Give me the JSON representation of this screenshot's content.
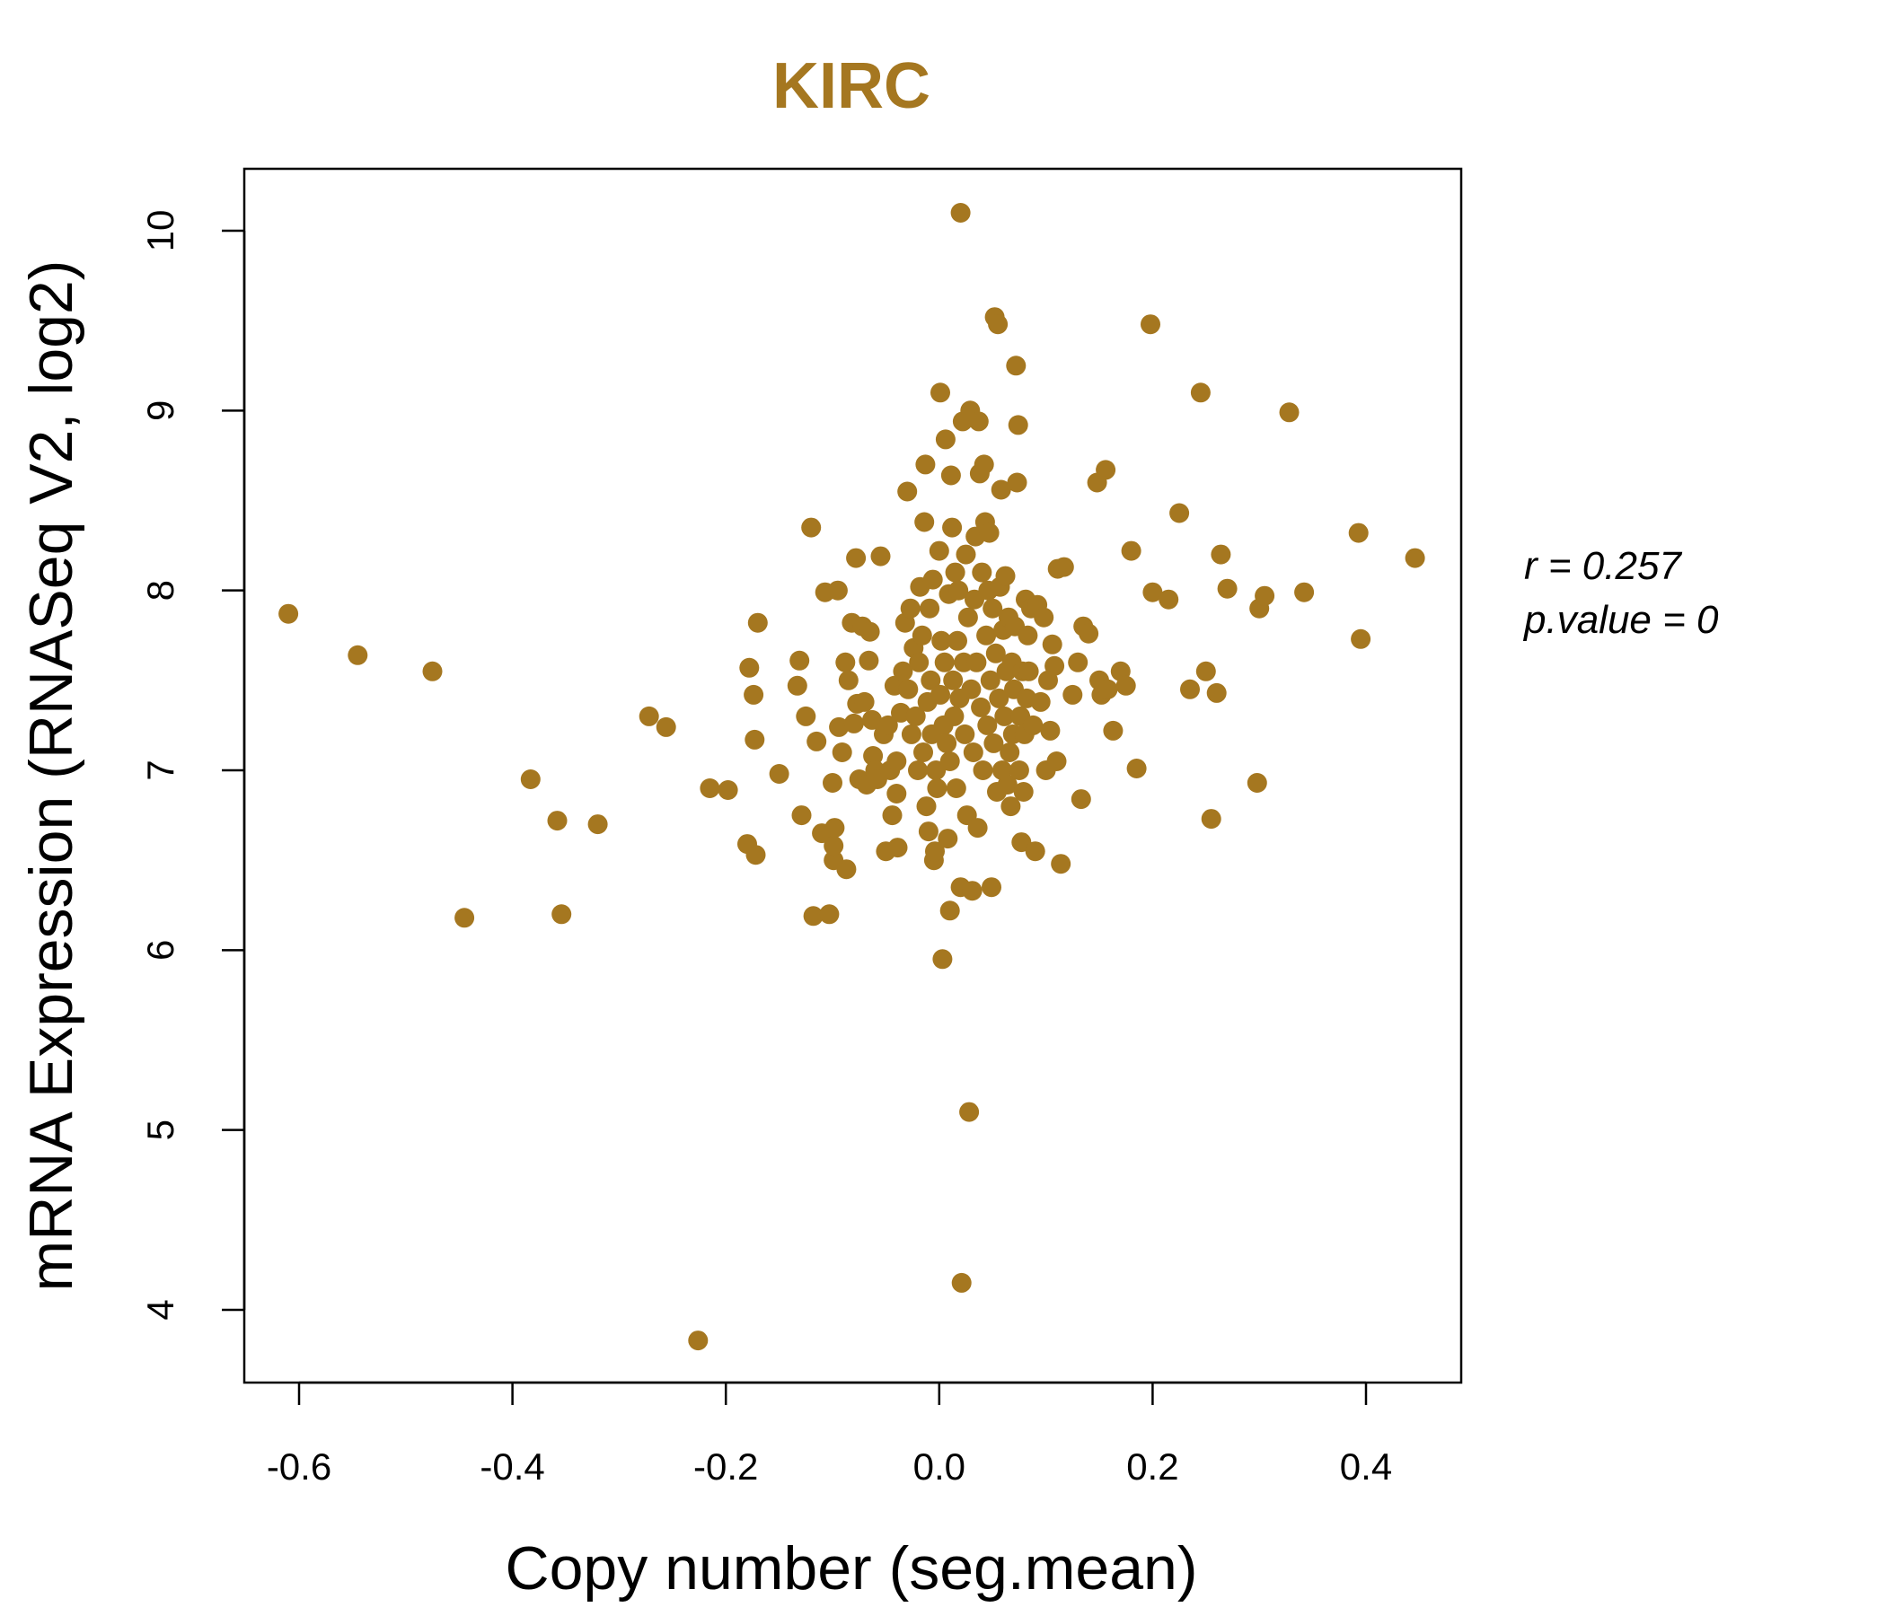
{
  "chart_data": {
    "type": "scatter",
    "title": "KIRC",
    "xlabel": "Copy number (seg.mean)",
    "ylabel": "mRNA Expression (RNASeq V2, log2)",
    "xlim": [
      -0.65,
      0.49
    ],
    "ylim": [
      3.6,
      10.35
    ],
    "x_ticks": [
      -0.6,
      -0.4,
      -0.2,
      0.0,
      0.2,
      0.4
    ],
    "x_tick_labels": [
      "-0.6",
      "-0.4",
      "-0.2",
      "0.0",
      "0.2",
      "0.4"
    ],
    "y_ticks": [
      4,
      5,
      6,
      7,
      8,
      9,
      10
    ],
    "y_tick_labels": [
      "4",
      "5",
      "6",
      "7",
      "8",
      "9",
      "10"
    ],
    "grid": false,
    "point_color": "#A57720",
    "title_color": "#A57720",
    "stats": {
      "r_text": "r = 0.257",
      "p_text": "p.value = 0"
    },
    "points": [
      [
        -0.61,
        7.87
      ],
      [
        -0.545,
        7.64
      ],
      [
        -0.475,
        7.55
      ],
      [
        -0.445,
        6.18
      ],
      [
        -0.383,
        6.95
      ],
      [
        -0.358,
        6.72
      ],
      [
        -0.354,
        6.2
      ],
      [
        -0.32,
        6.7
      ],
      [
        -0.272,
        7.3
      ],
      [
        -0.256,
        7.24
      ],
      [
        -0.226,
        3.83
      ],
      [
        -0.215,
        6.9
      ],
      [
        -0.198,
        6.89
      ],
      [
        -0.18,
        6.59
      ],
      [
        -0.178,
        7.57
      ],
      [
        -0.174,
        7.42
      ],
      [
        -0.173,
        7.17
      ],
      [
        -0.172,
        6.53
      ],
      [
        -0.17,
        7.82
      ],
      [
        -0.15,
        6.98
      ],
      [
        -0.133,
        7.47
      ],
      [
        -0.131,
        7.61
      ],
      [
        -0.129,
        6.75
      ],
      [
        -0.125,
        7.3
      ],
      [
        -0.12,
        8.35
      ],
      [
        -0.118,
        6.19
      ],
      [
        -0.115,
        7.16
      ],
      [
        -0.11,
        6.65
      ],
      [
        -0.107,
        7.99
      ],
      [
        -0.103,
        6.2
      ],
      [
        -0.1,
        6.93
      ],
      [
        -0.099,
        6.5
      ],
      [
        -0.099,
        6.58
      ],
      [
        -0.098,
        6.68
      ],
      [
        -0.095,
        8.0
      ],
      [
        -0.094,
        7.24
      ],
      [
        -0.091,
        7.1
      ],
      [
        -0.088,
        7.6
      ],
      [
        -0.087,
        6.45
      ],
      [
        -0.085,
        7.5
      ],
      [
        -0.082,
        7.82
      ],
      [
        -0.08,
        7.26
      ],
      [
        -0.078,
        8.18
      ],
      [
        -0.077,
        7.37
      ],
      [
        -0.075,
        6.95
      ],
      [
        -0.072,
        7.8
      ],
      [
        -0.07,
        7.38
      ],
      [
        -0.068,
        6.92
      ],
      [
        -0.066,
        7.61
      ],
      [
        -0.065,
        7.77
      ],
      [
        -0.063,
        7.28
      ],
      [
        -0.062,
        7.08
      ],
      [
        -0.06,
        7.0
      ],
      [
        -0.058,
        6.95
      ],
      [
        -0.055,
        8.19
      ],
      [
        -0.052,
        7.2
      ],
      [
        -0.05,
        6.55
      ],
      [
        -0.048,
        7.25
      ],
      [
        -0.046,
        7.0
      ],
      [
        -0.044,
        6.75
      ],
      [
        -0.042,
        7.47
      ],
      [
        -0.04,
        7.05
      ],
      [
        -0.04,
        6.87
      ],
      [
        -0.039,
        6.57
      ],
      [
        -0.036,
        7.32
      ],
      [
        -0.034,
        7.55
      ],
      [
        -0.032,
        7.82
      ],
      [
        -0.03,
        8.55
      ],
      [
        -0.029,
        7.45
      ],
      [
        -0.027,
        7.9
      ],
      [
        -0.026,
        7.2
      ],
      [
        -0.024,
        7.68
      ],
      [
        -0.022,
        7.3
      ],
      [
        -0.02,
        7.0
      ],
      [
        -0.019,
        7.6
      ],
      [
        -0.018,
        8.02
      ],
      [
        -0.016,
        7.75
      ],
      [
        -0.015,
        7.1
      ],
      [
        -0.014,
        8.38
      ],
      [
        -0.013,
        8.7
      ],
      [
        -0.012,
        6.8
      ],
      [
        -0.011,
        7.38
      ],
      [
        -0.01,
        6.66
      ],
      [
        -0.009,
        7.9
      ],
      [
        -0.008,
        7.5
      ],
      [
        -0.007,
        7.2
      ],
      [
        -0.006,
        8.06
      ],
      [
        -0.005,
        6.5
      ],
      [
        -0.004,
        6.55
      ],
      [
        -0.003,
        7.0
      ],
      [
        -0.002,
        6.9
      ],
      [
        0.0,
        8.22
      ],
      [
        0.001,
        7.42
      ],
      [
        0.001,
        9.1
      ],
      [
        0.002,
        7.72
      ],
      [
        0.003,
        5.95
      ],
      [
        0.004,
        7.25
      ],
      [
        0.005,
        7.6
      ],
      [
        0.006,
        8.84
      ],
      [
        0.007,
        7.15
      ],
      [
        0.008,
        6.62
      ],
      [
        0.009,
        7.98
      ],
      [
        0.01,
        7.05
      ],
      [
        0.01,
        6.22
      ],
      [
        0.011,
        8.64
      ],
      [
        0.012,
        8.35
      ],
      [
        0.013,
        7.5
      ],
      [
        0.014,
        7.3
      ],
      [
        0.015,
        8.1
      ],
      [
        0.016,
        6.9
      ],
      [
        0.017,
        7.72
      ],
      [
        0.018,
        8.0
      ],
      [
        0.019,
        7.4
      ],
      [
        0.02,
        10.1
      ],
      [
        0.02,
        6.35
      ],
      [
        0.021,
        4.15
      ],
      [
        0.022,
        8.94
      ],
      [
        0.023,
        7.6
      ],
      [
        0.024,
        7.2
      ],
      [
        0.025,
        8.2
      ],
      [
        0.026,
        6.75
      ],
      [
        0.027,
        7.85
      ],
      [
        0.028,
        5.1
      ],
      [
        0.029,
        9.0
      ],
      [
        0.03,
        7.45
      ],
      [
        0.031,
        6.33
      ],
      [
        0.032,
        7.1
      ],
      [
        0.033,
        7.95
      ],
      [
        0.034,
        8.3
      ],
      [
        0.035,
        7.6
      ],
      [
        0.036,
        6.68
      ],
      [
        0.037,
        8.94
      ],
      [
        0.038,
        8.65
      ],
      [
        0.039,
        7.35
      ],
      [
        0.04,
        8.1
      ],
      [
        0.041,
        7.0
      ],
      [
        0.042,
        8.7
      ],
      [
        0.043,
        8.38
      ],
      [
        0.044,
        7.75
      ],
      [
        0.045,
        7.25
      ],
      [
        0.046,
        8.0
      ],
      [
        0.047,
        8.32
      ],
      [
        0.048,
        7.5
      ],
      [
        0.049,
        6.35
      ],
      [
        0.05,
        7.9
      ],
      [
        0.051,
        7.15
      ],
      [
        0.052,
        9.52
      ],
      [
        0.053,
        7.65
      ],
      [
        0.054,
        6.88
      ],
      [
        0.055,
        9.48
      ],
      [
        0.056,
        7.4
      ],
      [
        0.057,
        8.02
      ],
      [
        0.058,
        8.56
      ],
      [
        0.059,
        7.0
      ],
      [
        0.06,
        7.78
      ],
      [
        0.061,
        7.3
      ],
      [
        0.062,
        8.08
      ],
      [
        0.063,
        7.55
      ],
      [
        0.064,
        6.92
      ],
      [
        0.065,
        7.85
      ],
      [
        0.066,
        7.1
      ],
      [
        0.067,
        6.8
      ],
      [
        0.068,
        7.6
      ],
      [
        0.069,
        7.2
      ],
      [
        0.07,
        7.45
      ],
      [
        0.071,
        7.8
      ],
      [
        0.072,
        9.25
      ],
      [
        0.073,
        8.6
      ],
      [
        0.074,
        8.92
      ],
      [
        0.075,
        7.0
      ],
      [
        0.076,
        7.3
      ],
      [
        0.077,
        6.6
      ],
      [
        0.078,
        7.55
      ],
      [
        0.079,
        6.88
      ],
      [
        0.08,
        7.2
      ],
      [
        0.081,
        7.95
      ],
      [
        0.082,
        7.4
      ],
      [
        0.083,
        7.75
      ],
      [
        0.084,
        7.55
      ],
      [
        0.086,
        7.9
      ],
      [
        0.088,
        7.25
      ],
      [
        0.09,
        6.55
      ],
      [
        0.092,
        7.92
      ],
      [
        0.095,
        7.38
      ],
      [
        0.098,
        7.85
      ],
      [
        0.1,
        7.0
      ],
      [
        0.102,
        7.5
      ],
      [
        0.104,
        7.22
      ],
      [
        0.106,
        7.7
      ],
      [
        0.108,
        7.58
      ],
      [
        0.11,
        7.05
      ],
      [
        0.111,
        8.12
      ],
      [
        0.114,
        6.48
      ],
      [
        0.117,
        8.13
      ],
      [
        0.125,
        7.42
      ],
      [
        0.13,
        7.6
      ],
      [
        0.133,
        6.84
      ],
      [
        0.135,
        7.8
      ],
      [
        0.14,
        7.76
      ],
      [
        0.148,
        8.6
      ],
      [
        0.15,
        7.5
      ],
      [
        0.152,
        7.42
      ],
      [
        0.156,
        8.67
      ],
      [
        0.158,
        7.45
      ],
      [
        0.163,
        7.22
      ],
      [
        0.17,
        7.55
      ],
      [
        0.175,
        7.47
      ],
      [
        0.18,
        8.22
      ],
      [
        0.185,
        7.01
      ],
      [
        0.198,
        9.48
      ],
      [
        0.2,
        7.99
      ],
      [
        0.215,
        7.95
      ],
      [
        0.225,
        8.43
      ],
      [
        0.235,
        7.45
      ],
      [
        0.245,
        9.1
      ],
      [
        0.25,
        7.55
      ],
      [
        0.255,
        6.73
      ],
      [
        0.26,
        7.43
      ],
      [
        0.264,
        8.2
      ],
      [
        0.27,
        8.01
      ],
      [
        0.298,
        6.93
      ],
      [
        0.3,
        7.9
      ],
      [
        0.305,
        7.97
      ],
      [
        0.328,
        8.99
      ],
      [
        0.342,
        7.99
      ],
      [
        0.393,
        8.32
      ],
      [
        0.395,
        7.73
      ],
      [
        0.446,
        8.18
      ]
    ]
  }
}
